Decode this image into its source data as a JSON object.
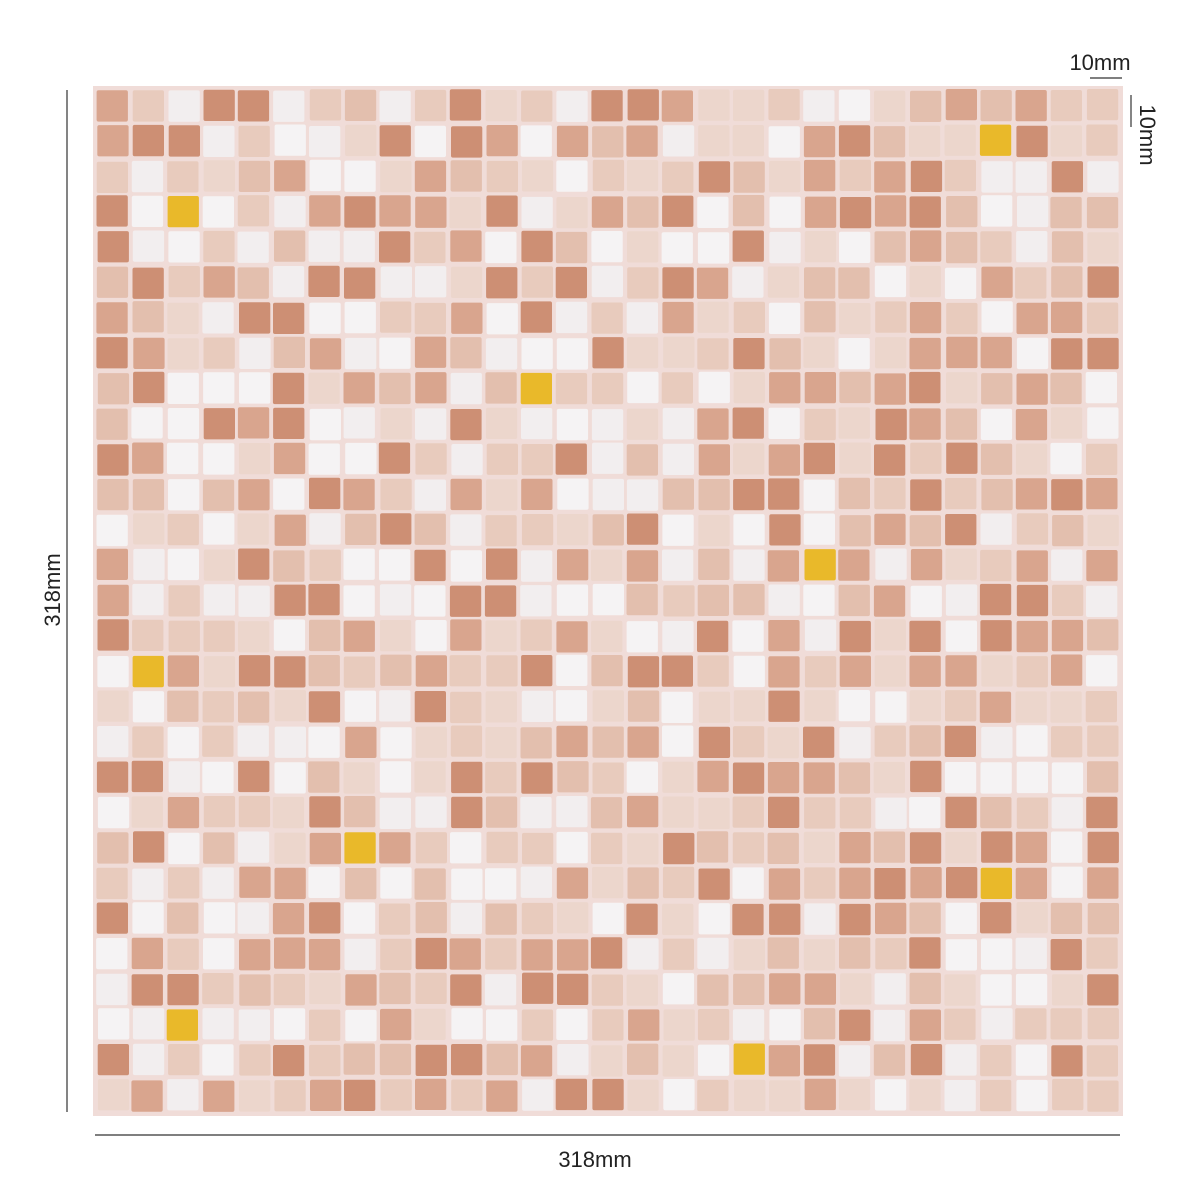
{
  "dimensions": {
    "tile_width": "10mm",
    "tile_height": "10mm",
    "sheet_height": "318mm",
    "sheet_width": "318mm"
  }
}
